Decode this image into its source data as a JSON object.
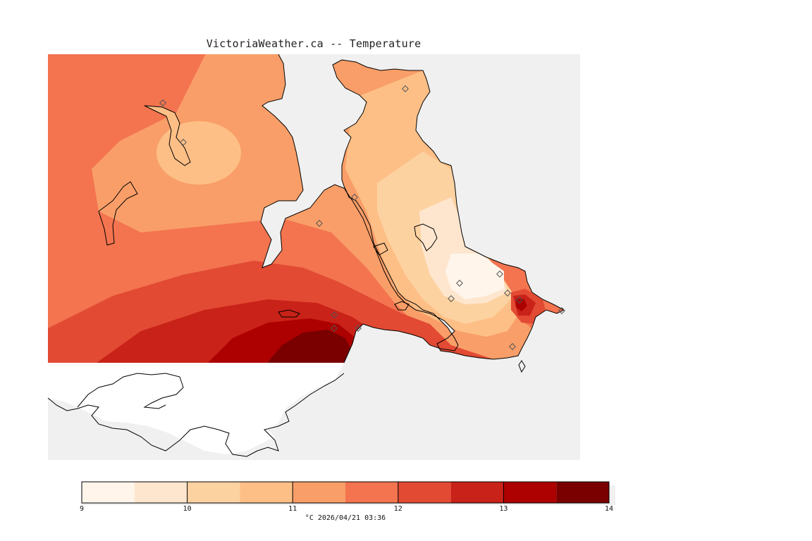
{
  "title": "VictoriaWeather.ca -- Temperature",
  "colorbar": {
    "ticks": [
      "9",
      "10",
      "11",
      "12",
      "13",
      "14"
    ],
    "bins": [
      {
        "from": 9.0,
        "to": 9.5,
        "color": "#fff5eb"
      },
      {
        "from": 9.5,
        "to": 10.0,
        "color": "#fee6ce"
      },
      {
        "from": 10.0,
        "to": 10.5,
        "color": "#fdd2a1"
      },
      {
        "from": 10.5,
        "to": 11.0,
        "color": "#fdbf86"
      },
      {
        "from": 11.0,
        "to": 11.5,
        "color": "#f99e68"
      },
      {
        "from": 11.5,
        "to": 12.0,
        "color": "#f3744f"
      },
      {
        "from": 12.0,
        "to": 12.5,
        "color": "#e24a33"
      },
      {
        "from": 12.5,
        "to": 13.0,
        "color": "#c92218"
      },
      {
        "from": 13.0,
        "to": 13.5,
        "color": "#ad0000"
      },
      {
        "from": 13.5,
        "to": 14.0,
        "color": "#7a0000"
      }
    ]
  },
  "footer": "°C  2026/04/21 03:36",
  "colors": {
    "water": "#f0f0f0",
    "background": "#ffffff",
    "coastline": "#000000",
    "station_marker": "#555555"
  },
  "station_marker_icon": "diamond-icon"
}
